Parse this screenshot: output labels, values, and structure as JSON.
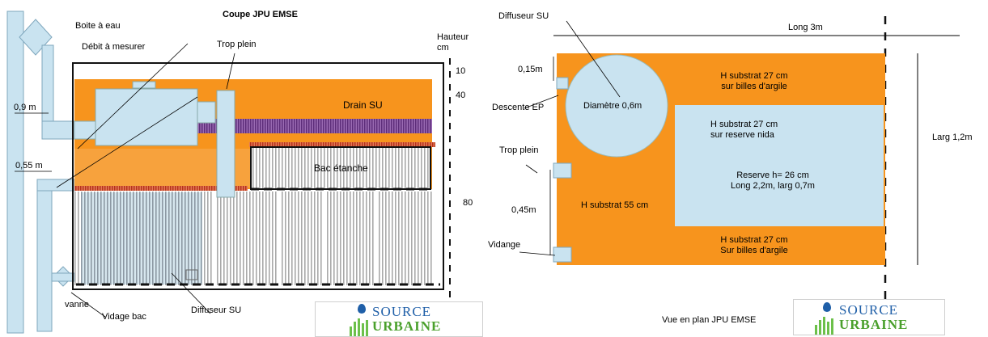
{
  "left_diagram": {
    "title": "Coupe JPU EMSE",
    "boite_a_eau": "Boite à eau",
    "debit_a_mesurer": "Débit à mesurer",
    "trop_plein": "Trop plein",
    "hauteur": "Hauteur\ncm",
    "drain_su": "Drain SU",
    "bac_etanche": "Bac étanche",
    "dim_09": "0,9 m",
    "dim_055": "0,55 m",
    "vanne": "vanne",
    "vidage_bac": "Vidage bac",
    "diffuseur_su": "Diffuseur SU",
    "scale": [
      "10",
      "40",
      "80"
    ]
  },
  "right_diagram": {
    "diffuseur_su": "Diffuseur SU",
    "long_3m": "Long 3m",
    "dim_015": "0,15m",
    "descente_ep": "Descente EP",
    "trop_plein": "Trop plein",
    "dim_045": "0,45m",
    "vidange": "Vidange",
    "diametre": "Diamètre 0,6m",
    "h27_billes_top": "H substrat 27 cm\nsur billes d'argile",
    "h27_nida": "H substrat 27 cm\nsur reserve nida",
    "reserve": "Reserve h= 26 cm\nLong 2,2m, larg 0,7m",
    "h55": "H substrat 55 cm",
    "h27_billes_bottom": "H substrat 27 cm\nSur billes d'argile",
    "larg": "Larg 1,2m",
    "caption": "Vue en plan JPU EMSE"
  },
  "logo": {
    "word1": "SOURCE",
    "word2": "URBAINE"
  },
  "colors": {
    "orange": "#f7941d",
    "light_blue": "#c9e3f0",
    "purple": "#7b3f98",
    "red": "#c8422a",
    "gray": "#d0d0d0"
  }
}
